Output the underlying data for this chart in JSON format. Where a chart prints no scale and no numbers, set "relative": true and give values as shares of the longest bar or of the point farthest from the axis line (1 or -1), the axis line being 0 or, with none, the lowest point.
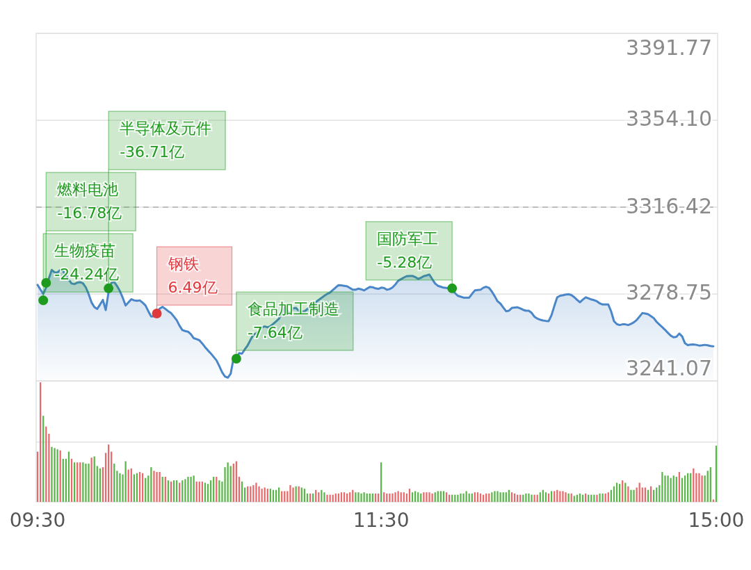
{
  "chart_data": [
    {
      "type": "area",
      "ylim": [
        3241.07,
        3391.77
      ],
      "yticks": [
        3241.07,
        3278.75,
        3316.42,
        {
          "value": 3354.1,
          "label": "3354.10"
        },
        3391.77
      ],
      "tick_labels": "y",
      "grid": "y",
      "categories": [
        null,
        null,
        null,
        null,
        null,
        null,
        null,
        null,
        null,
        null,
        null,
        null,
        null,
        null,
        null,
        null,
        null,
        null,
        null,
        null,
        null,
        null,
        null,
        null,
        null,
        null,
        null,
        null,
        null,
        null,
        null,
        null,
        null,
        null,
        null,
        null,
        null,
        null,
        null,
        null,
        null,
        null,
        null,
        null,
        null,
        null,
        null,
        null,
        null,
        null,
        null,
        null,
        null,
        null,
        null,
        null,
        null,
        null,
        null,
        null,
        null,
        null,
        null,
        null,
        null,
        null,
        null,
        null,
        null,
        null,
        null,
        null,
        null,
        null,
        null,
        null,
        null,
        null,
        null,
        null,
        null,
        null,
        null,
        null,
        null,
        null,
        null,
        null,
        null,
        null,
        null,
        null,
        null,
        null,
        null,
        null,
        null,
        null,
        null,
        null,
        null,
        null,
        null,
        null,
        null,
        null,
        null,
        null,
        null,
        null,
        null,
        null,
        null,
        null,
        null,
        null,
        null,
        null,
        null,
        null,
        null,
        null,
        null,
        null,
        null,
        null,
        null,
        null,
        null,
        null,
        null,
        null,
        null,
        null,
        null,
        null,
        null,
        null,
        null,
        null,
        null,
        null,
        null,
        null,
        null,
        null,
        null,
        null,
        null,
        null,
        null,
        null,
        null,
        null,
        null,
        null,
        null,
        null,
        null,
        null,
        null,
        null,
        null,
        null,
        null,
        null,
        null,
        null,
        null,
        null,
        null,
        null,
        null,
        null,
        null,
        null,
        null,
        null,
        null,
        null,
        null,
        null,
        null,
        null,
        null,
        null,
        null,
        null,
        null,
        null,
        null,
        null,
        null,
        null,
        null,
        null,
        null,
        null,
        null,
        null,
        null,
        null,
        null,
        null,
        null,
        null,
        null,
        null,
        null,
        null,
        null,
        null,
        null,
        null,
        null,
        null,
        null,
        null,
        null,
        null,
        null,
        null,
        null,
        null,
        null,
        null,
        null,
        null,
        null,
        null,
        null,
        null,
        null,
        null,
        null,
        null,
        null,
        null,
        null,
        null
      ],
      "ref_lines": [
        {
          "axis": "y",
          "value": 3316.42,
          "line_style": "dashed",
          "color": "#b0b0b0"
        }
      ],
      "series": [
        {
          "color": "#4a86c8",
          "values": [
            3282.7,
            3280.7,
            3278.8,
            3281.6,
            3285.6,
            3289.2,
            3288.1,
            3288.1,
            3289.2,
            3288.7,
            3286.8,
            3284.9,
            3283.3,
            3283.1,
            3283.7,
            3283.9,
            3283.4,
            3281.6,
            3278.7,
            3275.1,
            3273.1,
            3272.3,
            3274.2,
            3276.2,
            3271.8,
            3279.6,
            3283.6,
            3284.0,
            3282.2,
            3280.0,
            3277.1,
            3273.8,
            3275.1,
            3276.5,
            3276.0,
            3275.8,
            3276.0,
            3275.0,
            3273.8,
            3271.3,
            3269.0,
            3269.1,
            3270.7,
            3272.4,
            3273.2,
            3272.3,
            3271.3,
            3270.5,
            3269.0,
            3267.4,
            3265.0,
            3263.1,
            3262.7,
            3262.4,
            3261.3,
            3259.6,
            3259.2,
            3258.7,
            3257.3,
            3255.7,
            3254.3,
            3253.0,
            3251.5,
            3250.0,
            3247.5,
            3244.8,
            3243.0,
            3242.5,
            3244.2,
            3250.7,
            3251.3,
            3253.1,
            3252.9,
            3254.8,
            3256.5,
            3258.9,
            3261.1,
            3261.7,
            3262.7,
            3264.3,
            3264.7,
            3264.3,
            3264.8,
            3265.8,
            3266.9,
            3268.0,
            3270.2,
            3272.8,
            3271.5,
            3270.2,
            3272.6,
            3272.7,
            3271.5,
            3271.2,
            3271.2,
            3272.2,
            3273.2,
            3274.3,
            3275.2,
            3276.2,
            3277.1,
            3278.0,
            3278.8,
            3279.4,
            3280.5,
            3281.6,
            3282.6,
            3282.5,
            3282.3,
            3282.1,
            3281.4,
            3280.6,
            3280.6,
            3281.1,
            3280.8,
            3280.3,
            3281.1,
            3281.8,
            3281.7,
            3281.2,
            3281.0,
            3281.5,
            3281.4,
            3280.6,
            3280.9,
            3281.6,
            3282.9,
            3284.5,
            3285.2,
            3285.9,
            3286.5,
            3286.6,
            3286.6,
            3286.1,
            3285.3,
            3285.8,
            3286.5,
            3286.8,
            3287.2,
            3285.2,
            3283.3,
            3282.3,
            3281.9,
            3281.5,
            3281.4,
            3281.2,
            3280.5,
            3279.2,
            3278.0,
            3277.6,
            3277.2,
            3277.2,
            3277.2,
            3278.8,
            3280.3,
            3280.5,
            3280.6,
            3281.5,
            3281.9,
            3281.4,
            3279.8,
            3277.8,
            3275.6,
            3274.6,
            3272.9,
            3271.3,
            3271.5,
            3272.7,
            3272.9,
            3273.0,
            3272.5,
            3271.9,
            3271.5,
            3271.5,
            3270.6,
            3268.9,
            3268.1,
            3267.6,
            3267.3,
            3267.1,
            3267.0,
            3269.6,
            3273.6,
            3277.3,
            3278.0,
            3278.2,
            3278.5,
            3278.7,
            3278.3,
            3277.4,
            3276.2,
            3275.2,
            3276.3,
            3277.3,
            3276.9,
            3276.4,
            3276.1,
            3275.6,
            3274.7,
            3274.2,
            3274.2,
            3274.2,
            3271.2,
            3267.0,
            3265.7,
            3265.3,
            3265.6,
            3265.6,
            3265.3,
            3265.8,
            3266.5,
            3267.5,
            3269.0,
            3270.5,
            3270.3,
            3270.0,
            3269.2,
            3268.3,
            3266.7,
            3265.5,
            3264.4,
            3263.2,
            3261.9,
            3260.7,
            3260.0,
            3260.2,
            3261.6,
            3260.4,
            3257.4,
            3256.6,
            3256.8,
            3256.9,
            3256.7,
            3256.4,
            3256.5,
            3256.7,
            3256.5,
            3256.2,
            3256.1,
            null
          ]
        },
        {
          "type": "scatter",
          "color": "#1e9a1e",
          "values": [
            null,
            null,
            3276.0,
            3283.6,
            null,
            null,
            null,
            null,
            null,
            null,
            null,
            null,
            null,
            null,
            null,
            null,
            null,
            null,
            null,
            null,
            null,
            null,
            null,
            null,
            null,
            3281.2,
            null,
            null,
            null,
            null,
            null,
            null,
            null,
            null,
            null,
            null,
            null,
            null,
            null,
            null,
            null,
            null,
            null,
            null,
            null,
            null,
            null,
            null,
            null,
            null,
            null,
            null,
            null,
            null,
            null,
            null,
            null,
            null,
            null,
            null,
            null,
            null,
            null,
            null,
            null,
            null,
            null,
            null,
            null,
            null,
            3250.7,
            null,
            null,
            null,
            null,
            null,
            null,
            null,
            null,
            null,
            null,
            null,
            null,
            null,
            null,
            null,
            null,
            null,
            null,
            null,
            null,
            null,
            null,
            null,
            null,
            null,
            null,
            null,
            null,
            null,
            null,
            null,
            null,
            null,
            null,
            null,
            null,
            null,
            null,
            null,
            null,
            null,
            null,
            null,
            null,
            null,
            null,
            null,
            null,
            null,
            null,
            null,
            null,
            null,
            null,
            null,
            null,
            null,
            null,
            null,
            null,
            null,
            null,
            null,
            null,
            null,
            null,
            null,
            null,
            null,
            null,
            null,
            null,
            null,
            null,
            null,
            3281.2,
            null,
            null,
            null,
            null,
            null,
            null,
            null,
            null,
            null,
            null,
            null,
            null,
            null,
            null,
            null,
            null,
            null,
            null,
            null,
            null,
            null,
            null,
            null,
            null,
            null,
            null,
            null,
            null,
            null,
            null,
            null,
            null,
            null,
            null,
            null,
            null,
            null,
            null,
            null,
            null,
            null,
            null,
            null,
            null,
            null,
            null,
            null,
            null,
            null,
            null,
            null,
            null,
            null,
            null,
            null,
            null,
            null,
            null,
            null,
            null,
            null,
            null,
            null,
            null,
            null,
            null,
            null,
            null,
            null,
            null,
            null,
            null,
            null,
            null,
            null,
            null,
            null,
            null,
            null,
            null,
            null,
            null,
            null,
            null,
            null,
            null,
            null,
            null,
            null,
            null,
            null,
            null,
            null
          ]
        },
        {
          "type": "scatter",
          "color": "#e0393e",
          "values": [
            null,
            null,
            null,
            null,
            null,
            null,
            null,
            null,
            null,
            null,
            null,
            null,
            null,
            null,
            null,
            null,
            null,
            null,
            null,
            null,
            null,
            null,
            null,
            null,
            null,
            null,
            null,
            null,
            null,
            null,
            null,
            null,
            null,
            null,
            null,
            null,
            null,
            null,
            null,
            null,
            null,
            null,
            3270.3,
            null,
            null,
            null,
            null,
            null,
            null,
            null,
            null,
            null,
            null,
            null,
            null,
            null,
            null,
            null,
            null,
            null,
            null,
            null,
            null,
            null,
            null,
            null,
            null,
            null,
            null,
            null,
            null,
            null,
            null,
            null,
            null,
            null,
            null,
            null,
            null,
            null,
            null,
            null,
            null,
            null,
            null,
            null,
            null,
            null,
            null,
            null,
            null,
            null,
            null,
            null,
            null,
            null,
            null,
            null,
            null,
            null,
            null,
            null,
            null,
            null,
            null,
            null,
            null,
            null,
            null,
            null,
            null,
            null,
            null,
            null,
            null,
            null,
            null,
            null,
            null,
            null,
            null,
            null,
            null,
            null,
            null,
            null,
            null,
            null,
            null,
            null,
            null,
            null,
            null,
            null,
            null,
            null,
            null,
            null,
            null,
            null,
            null,
            null,
            null,
            null,
            null,
            null,
            null,
            null,
            null,
            null,
            null,
            null,
            null,
            null,
            null,
            null,
            null,
            null,
            null,
            null,
            null,
            null,
            null,
            null,
            null,
            null,
            null,
            null,
            null,
            null,
            null,
            null,
            null,
            null,
            null,
            null,
            null,
            null,
            null,
            null,
            null,
            null,
            null,
            null,
            null,
            null,
            null,
            null,
            null,
            null,
            null,
            null,
            null,
            null,
            null,
            null,
            null,
            null,
            null,
            null,
            null,
            null,
            null,
            null,
            null,
            null,
            null,
            null,
            null,
            null,
            null,
            null,
            null,
            null,
            null,
            null,
            null,
            null,
            null,
            null,
            null,
            null,
            null,
            null,
            null,
            null,
            null,
            null,
            null,
            null,
            null,
            null,
            null,
            null,
            null,
            null,
            null,
            null,
            null,
            null
          ]
        }
      ],
      "annotations": [
        "生物疫苗\n-24.24亿",
        "燃料电池\n-16.78亿",
        "半导体及元件\n-36.71亿",
        "钢铁\n6.49亿",
        "食品加工制造\n-7.64亿",
        "国防军工\n-5.28亿"
      ]
    },
    {
      "type": "bar",
      "relative": true,
      "ref_lines": [
        {
          "axis": "y",
          "value": 0.5,
          "line_style": "solid",
          "color": "#e2e2e2"
        }
      ],
      "categories": [
        "09:30",
        null,
        null,
        null,
        null,
        null,
        null,
        null,
        null,
        null,
        null,
        null,
        null,
        null,
        null,
        null,
        null,
        null,
        null,
        null,
        null,
        null,
        null,
        null,
        null,
        null,
        null,
        null,
        null,
        null,
        null,
        null,
        null,
        null,
        null,
        null,
        null,
        null,
        null,
        null,
        null,
        null,
        null,
        null,
        null,
        null,
        null,
        null,
        null,
        null,
        null,
        null,
        null,
        null,
        null,
        null,
        null,
        null,
        null,
        null,
        null,
        null,
        null,
        null,
        null,
        null,
        null,
        null,
        null,
        null,
        null,
        null,
        null,
        null,
        null,
        null,
        null,
        null,
        null,
        null,
        null,
        null,
        null,
        null,
        null,
        null,
        null,
        null,
        null,
        null,
        null,
        null,
        null,
        null,
        null,
        null,
        null,
        null,
        null,
        null,
        null,
        null,
        null,
        null,
        null,
        null,
        null,
        null,
        null,
        null,
        null,
        null,
        null,
        null,
        null,
        null,
        null,
        null,
        null,
        null,
        null,
        "11:30",
        null,
        null,
        null,
        null,
        null,
        null,
        null,
        null,
        null,
        null,
        null,
        null,
        null,
        null,
        null,
        null,
        null,
        null,
        null,
        null,
        null,
        null,
        null,
        null,
        null,
        null,
        null,
        null,
        null,
        null,
        null,
        null,
        null,
        null,
        null,
        null,
        null,
        null,
        null,
        null,
        null,
        null,
        null,
        null,
        null,
        null,
        null,
        null,
        null,
        null,
        null,
        null,
        null,
        null,
        null,
        null,
        null,
        null,
        null,
        null,
        null,
        null,
        null,
        null,
        null,
        null,
        null,
        null,
        null,
        null,
        null,
        null,
        null,
        null,
        null,
        null,
        null,
        null,
        null,
        null,
        null,
        null,
        null,
        null,
        null,
        null,
        null,
        null,
        null,
        null,
        null,
        null,
        null,
        null,
        null,
        null,
        null,
        null,
        null,
        null,
        null,
        null,
        null,
        null,
        null,
        null,
        null,
        null,
        null,
        null,
        null,
        null,
        null,
        null,
        null,
        null,
        null,
        "15:00"
      ],
      "values": [
        0.42,
        1,
        0.72,
        0.63,
        0.57,
        0.46,
        0.45,
        0.44,
        0.43,
        0.36,
        0.36,
        0.42,
        0.36,
        0.33,
        0.33,
        0.33,
        0.33,
        0.32,
        0.32,
        0.37,
        0.38,
        0.3,
        0.28,
        0.29,
        0.41,
        0.48,
        0.42,
        0.32,
        0.26,
        0.24,
        0.23,
        0.34,
        0.27,
        0.28,
        0.23,
        0.24,
        0.25,
        0.24,
        0.2,
        0.22,
        0.29,
        0.26,
        0.25,
        0.25,
        0.21,
        0.21,
        0.18,
        0.17,
        0.18,
        0.18,
        0.16,
        0.18,
        0.19,
        0.21,
        0.21,
        0.22,
        0.17,
        0.17,
        0.17,
        0.16,
        0.15,
        0.18,
        0.21,
        0.21,
        0.18,
        0.17,
        0.29,
        0.33,
        0.3,
        0.32,
        0.34,
        0.21,
        0.17,
        0.12,
        0.13,
        0.13,
        0.14,
        0.16,
        0.13,
        0.11,
        0.12,
        0.11,
        0.11,
        0.1,
        0.1,
        0.12,
        0.09,
        0.09,
        0.09,
        0.14,
        0.12,
        0.13,
        0.13,
        0.12,
        0.11,
        0.07,
        0.07,
        0.07,
        0.1,
        0.08,
        0.1,
        0.08,
        0.06,
        0.06,
        0.06,
        0.07,
        0.07,
        0.08,
        0.08,
        0.07,
        0.08,
        0.1,
        0.08,
        0.08,
        0.07,
        0.08,
        0.07,
        0.07,
        0.07,
        0.07,
        0.07,
        0.33,
        0.08,
        0.07,
        0.07,
        0.07,
        0.08,
        0.09,
        0.08,
        0.08,
        0.07,
        0.11,
        0.08,
        0.09,
        0.08,
        0.07,
        0.08,
        0.08,
        0.08,
        0.07,
        0.08,
        0.09,
        0.09,
        0.09,
        0.08,
        0.06,
        0.06,
        0.06,
        0.06,
        0.07,
        0.07,
        0.09,
        0.07,
        0.07,
        0.08,
        0.08,
        0.07,
        0.06,
        0.07,
        0.07,
        0.08,
        0.09,
        0.09,
        0.08,
        0.08,
        0.08,
        0.1,
        0.08,
        0.07,
        0.06,
        0.06,
        0.06,
        0.07,
        0.07,
        0.06,
        0.06,
        0.06,
        0.08,
        0.1,
        0.08,
        0.07,
        0.09,
        0.09,
        0.1,
        0.09,
        0.09,
        0.08,
        0.07,
        0.07,
        0.05,
        0.06,
        0.07,
        0.06,
        0.07,
        0.06,
        0.06,
        0.06,
        0.06,
        0.07,
        0.07,
        0.07,
        0.08,
        0.1,
        0.13,
        0.16,
        0.15,
        0.18,
        0.16,
        0.13,
        0.1,
        0.1,
        0.12,
        0.16,
        0.12,
        0.12,
        0.1,
        0.13,
        0.1,
        0.12,
        0.14,
        0.25,
        0.22,
        0.22,
        0.2,
        0.22,
        0.21,
        0.25,
        0.2,
        0.22,
        0.24,
        0.24,
        0.28,
        0.24,
        0.24,
        0.22,
        0.22,
        0.26,
        0.29,
        0.02,
        0.47
      ],
      "colors": [
        "#e8696b",
        "#e8696b",
        "#5ab54b",
        "#e8696b",
        "#e8696b",
        "#5ab54b",
        "#5ab54b",
        "#5ab54b",
        "#e8696b",
        "#5ab54b",
        "#5ab54b",
        "#5ab54b",
        "#e8696b",
        "#5ab54b",
        "#e8696b",
        "#e8696b",
        "#5ab54b",
        "#5ab54b",
        "#5ab54b",
        "#e8696b",
        "#5ab54b",
        "#5ab54b",
        "#5ab54b",
        "#e8696b",
        "#e8696b",
        "#e8696b",
        "#e8696b",
        "#5ab54b",
        "#5ab54b",
        "#5ab54b",
        "#5ab54b",
        "#5ab54b",
        "#e8696b",
        "#e8696b",
        "#5ab54b",
        "#5ab54b",
        "#e8696b",
        "#e8696b",
        "#5ab54b",
        "#5ab54b",
        "#5ab54b",
        "#e8696b",
        "#e8696b",
        "#e8696b",
        "#5ab54b",
        "#e8696b",
        "#5ab54b",
        "#e8696b",
        "#5ab54b",
        "#5ab54b",
        "#e8696b",
        "#5ab54b",
        "#5ab54b",
        "#5ab54b",
        "#5ab54b",
        "#5ab54b",
        "#e8696b",
        "#e8696b",
        "#e8696b",
        "#5ab54b",
        "#5ab54b",
        "#5ab54b",
        "#5ab54b",
        "#e8696b",
        "#5ab54b",
        "#5ab54b",
        "#5ab54b",
        "#5ab54b",
        "#5ab54b",
        "#e8696b",
        "#e8696b",
        "#e8696b",
        "#5ab54b",
        "#5ab54b",
        "#e8696b",
        "#e8696b",
        "#e8696b",
        "#e8696b",
        "#e8696b",
        "#e8696b",
        "#e8696b",
        "#e8696b",
        "#5ab54b",
        "#5ab54b",
        "#5ab54b",
        "#5ab54b",
        "#e8696b",
        "#e8696b",
        "#e8696b",
        "#e8696b",
        "#e8696b",
        "#5ab54b",
        "#e8696b",
        "#5ab54b",
        "#5ab54b",
        "#5ab54b",
        "#e8696b",
        "#5ab54b",
        "#e8696b",
        "#e8696b",
        "#5ab54b",
        "#5ab54b",
        "#e8696b",
        "#e8696b",
        "#e8696b",
        "#e8696b",
        "#e8696b",
        "#e8696b",
        "#e8696b",
        "#e8696b",
        "#e8696b",
        "#e8696b",
        "#5ab54b",
        "#5ab54b",
        "#5ab54b",
        "#5ab54b",
        "#5ab54b",
        "#5ab54b",
        "#5ab54b",
        "#e8696b",
        "#e8696b",
        "#5ab54b",
        "#e8696b",
        "#e8696b",
        "#e8696b",
        "#e8696b",
        "#e8696b",
        "#e8696b",
        "#e8696b",
        "#e8696b",
        "#e8696b",
        "#e8696b",
        "#5ab54b",
        "#5ab54b",
        "#5ab54b",
        "#5ab54b",
        "#e8696b",
        "#e8696b",
        "#e8696b",
        "#e8696b",
        "#5ab54b",
        "#5ab54b",
        "#5ab54b",
        "#5ab54b",
        "#e8696b",
        "#e8696b",
        "#5ab54b",
        "#5ab54b",
        "#5ab54b",
        "#5ab54b",
        "#5ab54b",
        "#5ab54b",
        "#5ab54b",
        "#5ab54b",
        "#e8696b",
        "#e8696b",
        "#e8696b",
        "#e8696b",
        "#e8696b",
        "#e8696b",
        "#5ab54b",
        "#5ab54b",
        "#5ab54b",
        "#5ab54b",
        "#5ab54b",
        "#5ab54b",
        "#5ab54b",
        "#e8696b",
        "#e8696b",
        "#e8696b",
        "#e8696b",
        "#5ab54b",
        "#5ab54b",
        "#5ab54b",
        "#5ab54b",
        "#e8696b",
        "#e8696b",
        "#5ab54b",
        "#5ab54b",
        "#5ab54b",
        "#e8696b",
        "#5ab54b",
        "#e8696b",
        "#e8696b",
        "#e8696b",
        "#e8696b",
        "#e8696b",
        "#5ab54b",
        "#e8696b",
        "#5ab54b",
        "#5ab54b",
        "#5ab54b",
        "#5ab54b",
        "#e8696b",
        "#5ab54b",
        "#5ab54b",
        "#5ab54b",
        "#e8696b",
        "#5ab54b",
        "#5ab54b",
        "#e8696b",
        "#e8696b",
        "#5ab54b",
        "#5ab54b",
        "#5ab54b",
        "#5ab54b",
        "#e8696b",
        "#5ab54b",
        "#e8696b",
        "#5ab54b",
        "#5ab54b",
        "#e8696b",
        "#e8696b",
        "#e8696b",
        "#e8696b",
        "#5ab54b",
        "#e8696b",
        "#5ab54b",
        "#5ab54b",
        "#5ab54b",
        "#5ab54b",
        "#5ab54b",
        "#5ab54b",
        "#5ab54b",
        "#5ab54b",
        "#5ab54b",
        "#e8696b",
        "#5ab54b",
        "#5ab54b",
        "#5ab54b",
        "#5ab54b",
        "#e8696b",
        "#e8696b",
        "#e8696b",
        "#e8696b",
        "#5ab54b",
        "#5ab54b",
        "#5ab54b",
        "#e8696b",
        "#5ab54b"
      ]
    }
  ]
}
